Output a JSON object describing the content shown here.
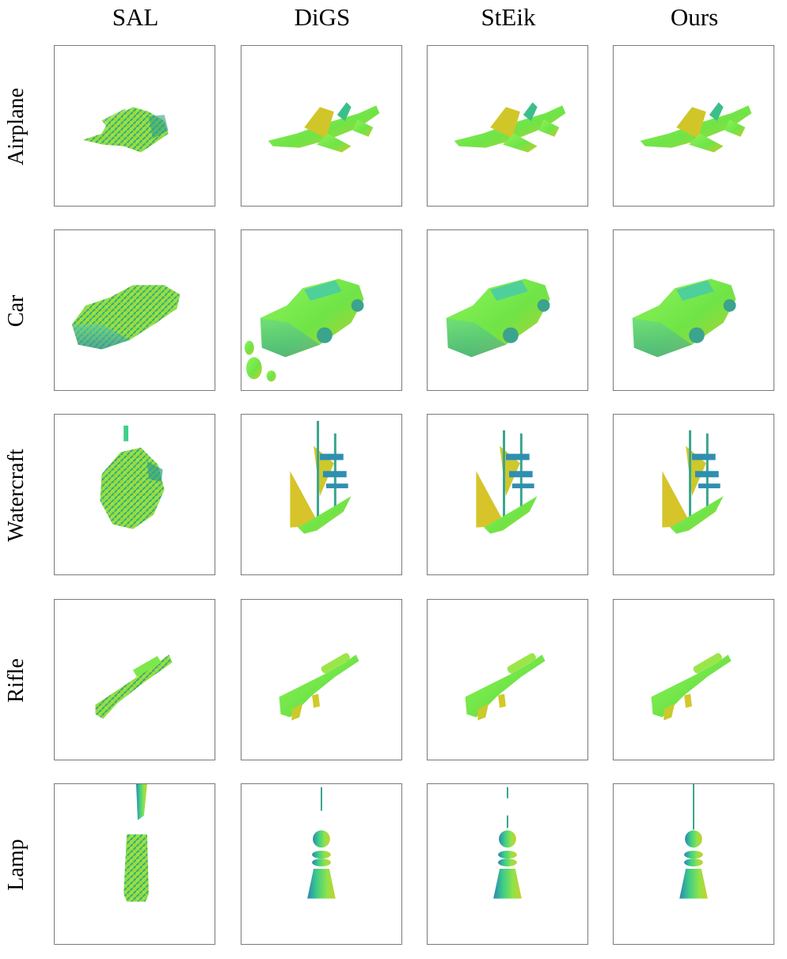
{
  "methods": [
    "SAL",
    "DiGS",
    "StEik",
    "Ours"
  ],
  "categories": [
    "Airplane",
    "Car",
    "Watercraft",
    "Rifle",
    "Lamp"
  ],
  "colors": {
    "surface_green": "#7bf04a",
    "surface_yellow": "#c8cf2a",
    "surface_teal": "#2fa08c",
    "surface_blue": "#2a7fb0",
    "frame_border": "#7a7a7a"
  }
}
